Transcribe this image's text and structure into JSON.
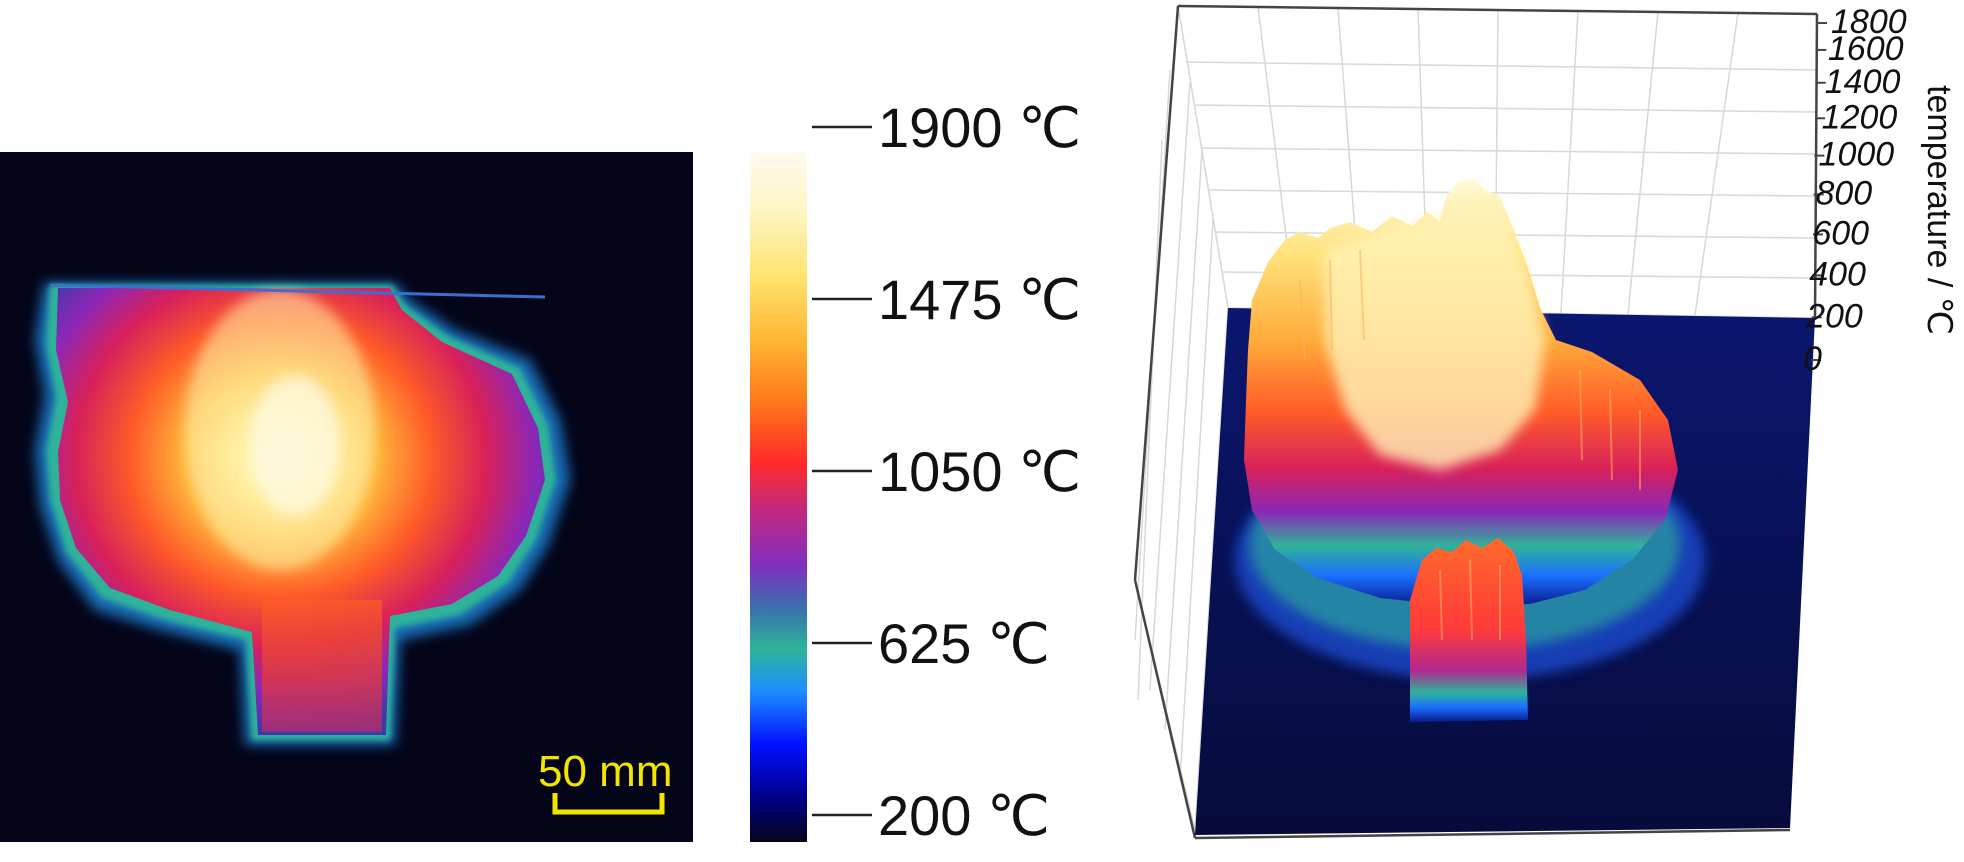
{
  "chart_data": [
    {
      "type": "heatmap",
      "title": "",
      "scale_bar": {
        "label": "50 mm",
        "color": "#f2e600"
      },
      "colormap": [
        "#05051a",
        "#0000c8",
        "#1e90ff",
        "#2fb39a",
        "#7f2fbf",
        "#d8205a",
        "#ff3a20",
        "#ff8a1a",
        "#ffd84a",
        "#fffae0"
      ]
    },
    {
      "type": "colorbar",
      "ticks": [
        {
          "value": 1900,
          "label": "1900 ℃"
        },
        {
          "value": 1475,
          "label": "1475 ℃"
        },
        {
          "value": 1050,
          "label": "1050 ℃"
        },
        {
          "value": 625,
          "label": "625 ℃"
        },
        {
          "value": 200,
          "label": "200 ℃"
        }
      ],
      "range": [
        200,
        1900
      ]
    },
    {
      "type": "surface",
      "zlabel": "temperature / ℃",
      "zlim": [
        0,
        1800
      ],
      "z_ticks": [
        "1800",
        "1600",
        "1400",
        "1200",
        "1000",
        "800",
        "600",
        "400",
        "200",
        "0"
      ],
      "grid": true
    }
  ]
}
